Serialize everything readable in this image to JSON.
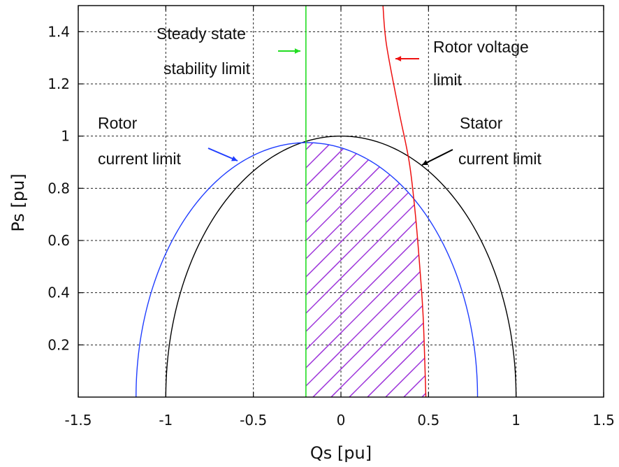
{
  "chart_data": {
    "type": "line",
    "xlabel": "Qs [pu]",
    "ylabel": "Ps [pu]",
    "xlim": [
      -1.5,
      1.5
    ],
    "ylim": [
      0.0,
      1.5
    ],
    "x_ticks": [
      "-1.5",
      "-1",
      "-0.5",
      "0",
      "0.5",
      "1",
      "1.5"
    ],
    "x_tick_values": [
      -1.5,
      -1,
      -0.5,
      0,
      0.5,
      1,
      1.5
    ],
    "y_ticks": [
      "0.2",
      "0.4",
      "0.6",
      "0.8",
      "1",
      "1.2",
      "1.4"
    ],
    "y_tick_values": [
      0.2,
      0.4,
      0.6,
      0.8,
      1,
      1.2,
      1.4
    ],
    "grid": true,
    "series": [
      {
        "name": "Stator current limit",
        "color": "#000000",
        "shape": "circle",
        "center": [
          0,
          0
        ],
        "radius": 1.0
      },
      {
        "name": "Rotor current limit",
        "color": "#1f3dff",
        "shape": "circle",
        "center": [
          -0.195,
          0
        ],
        "radius": 0.975
      },
      {
        "name": "Steady state stability limit",
        "color": "#22dd22",
        "shape": "vertical",
        "x": -0.2
      },
      {
        "name": "Rotor voltage limit",
        "color": "#ee1111",
        "shape": "curve",
        "points": [
          [
            0.485,
            0.0
          ],
          [
            0.47,
            0.3
          ],
          [
            0.45,
            0.5
          ],
          [
            0.425,
            0.7
          ],
          [
            0.39,
            0.9
          ],
          [
            0.33,
            1.1
          ],
          [
            0.26,
            1.35
          ],
          [
            0.24,
            1.5
          ]
        ]
      }
    ],
    "hatch": {
      "color": "#9b30d9",
      "region": "feasible operating region"
    },
    "annotations": [
      {
        "lines": [
          "Steady state",
          "stability limit"
        ],
        "arrow_color": "#22dd22"
      },
      {
        "lines": [
          "Rotor voltage",
          "limit"
        ],
        "arrow_color": "#ee1111"
      },
      {
        "lines": [
          "Rotor",
          "current limit"
        ],
        "arrow_color": "#1f3dff"
      },
      {
        "lines": [
          "Stator",
          "current limit"
        ],
        "arrow_color": "#000000"
      }
    ]
  }
}
